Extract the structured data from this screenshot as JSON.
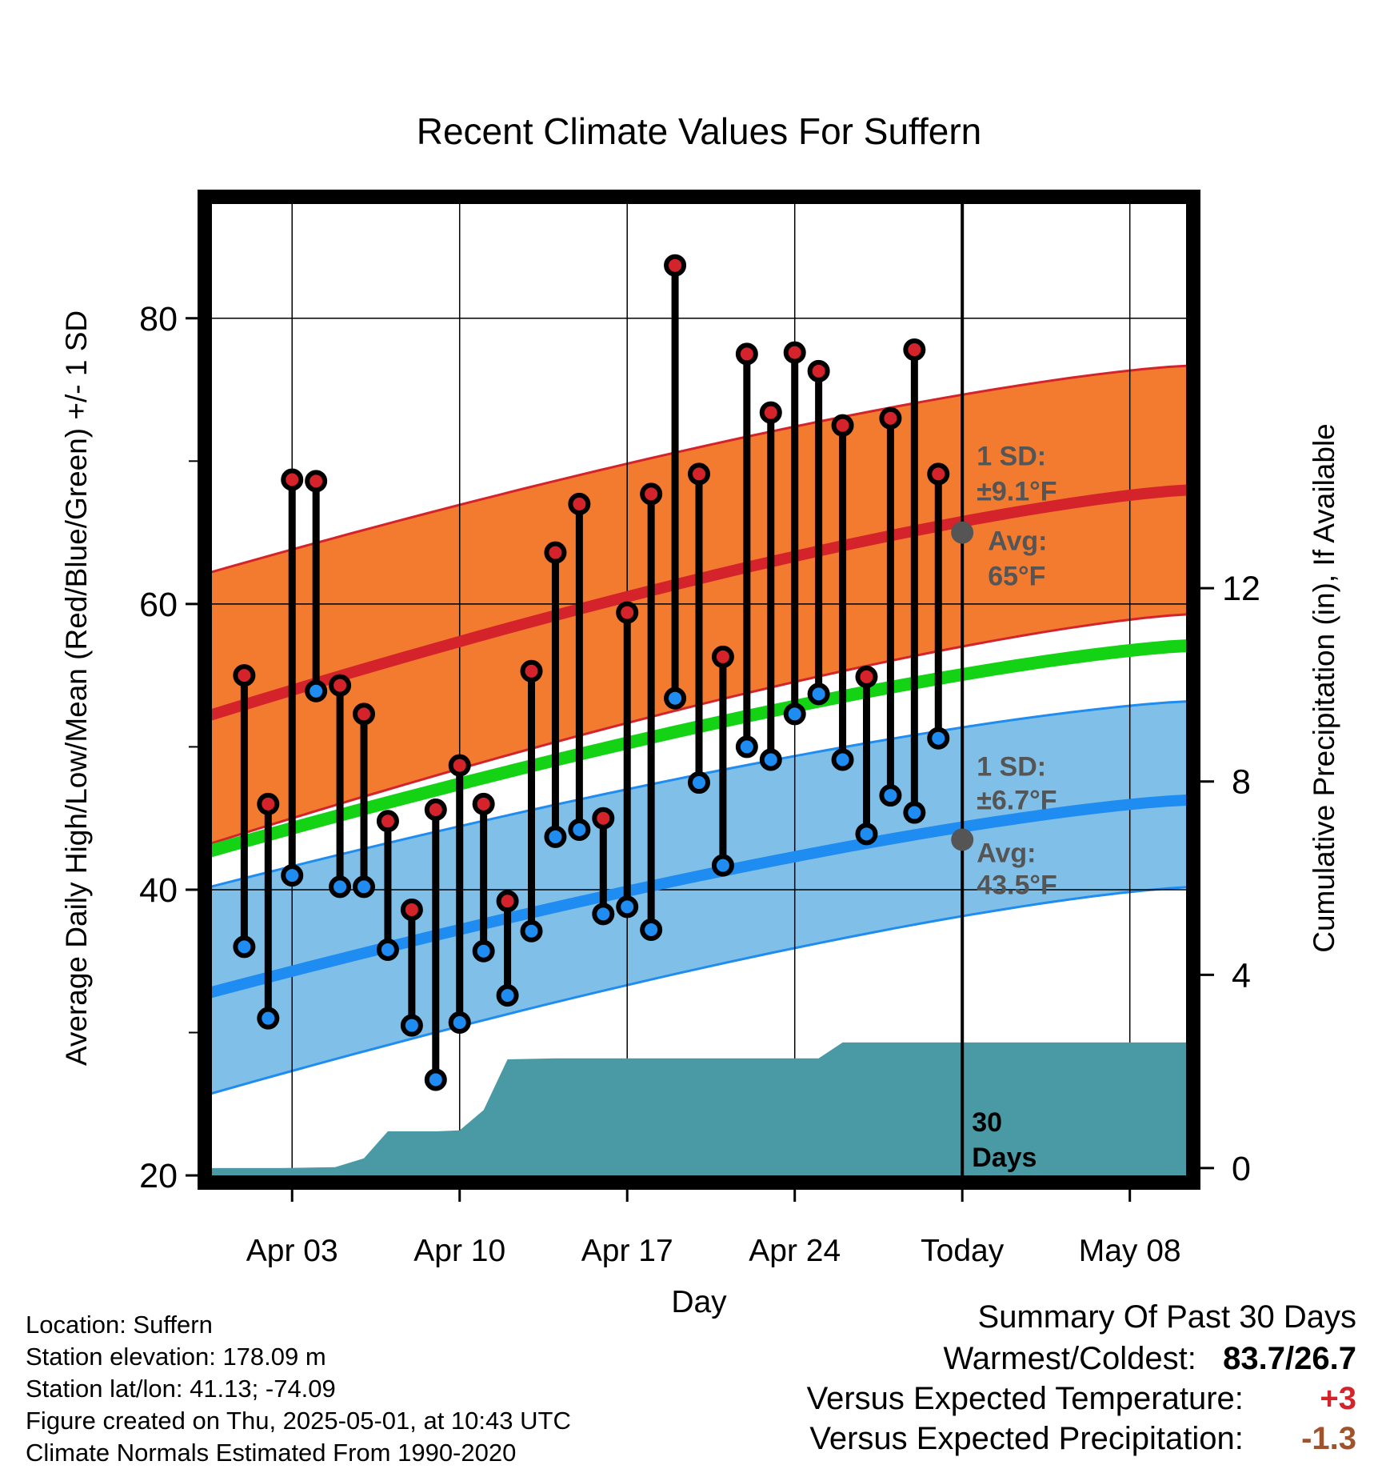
{
  "chart_data": {
    "type": "line",
    "title": "Recent Climate Values For Suffern",
    "xlabel": "Day",
    "ylabel": "Average Daily High/Low/Mean (Red/Blue/Green) +/- 1 SD",
    "y2label": "Cumulative Precipitation (in), If Available",
    "ylim": [
      19.5,
      88.5
    ],
    "y2lim": [
      -0.3,
      20.1
    ],
    "xlim": [
      -0.65,
      40.65
    ],
    "x_tick_labels": [
      {
        "day": 3,
        "label": "Apr 03"
      },
      {
        "day": 10,
        "label": "Apr 10"
      },
      {
        "day": 17,
        "label": "Apr 17"
      },
      {
        "day": 24,
        "label": "Apr 24"
      },
      {
        "day": 31,
        "label": "Today"
      },
      {
        "day": 38,
        "label": "May 08"
      }
    ],
    "y_ticks": [
      20,
      40,
      60,
      80
    ],
    "y_minor_ticks": [
      30,
      50,
      70
    ],
    "y2_ticks": [
      0,
      4,
      8,
      12
    ],
    "grid": true,
    "days": [
      1,
      2,
      3,
      4,
      5,
      6,
      7,
      8,
      9,
      10,
      11,
      12,
      13,
      14,
      15,
      16,
      17,
      18,
      19,
      20,
      21,
      22,
      23,
      24,
      25,
      26,
      27,
      28,
      29,
      30
    ],
    "highs": [
      55,
      46,
      68.7,
      68.6,
      54.3,
      52.3,
      44.8,
      38.6,
      45.6,
      48.7,
      46,
      39.2,
      55.3,
      63.6,
      67,
      45,
      59.4,
      67.7,
      83.7,
      69.1,
      56.3,
      77.5,
      73.4,
      77.6,
      76.3,
      72.5,
      54.9,
      73,
      77.8,
      69.1
    ],
    "lows": [
      36,
      31,
      41,
      53.9,
      40.2,
      40.2,
      35.8,
      30.5,
      26.7,
      30.7,
      35.7,
      32.6,
      37.1,
      43.7,
      44.2,
      38.3,
      38.8,
      37.2,
      53.4,
      47.5,
      41.7,
      50,
      49.1,
      52.3,
      53.7,
      49.1,
      43.9,
      46.6,
      45.4,
      50.6
    ],
    "normal_high": {
      "start": 52.1,
      "end": 68
    },
    "normal_high_band": {
      "lower_start": 43.1,
      "lower_end": 59.3,
      "upper_start": 62.1,
      "upper_end": 76.7
    },
    "normal_mean": {
      "start": 42.6,
      "end": 57.1
    },
    "normal_low": {
      "start": 32.7,
      "end": 46.3
    },
    "normal_low_band": {
      "lower_start": 25.6,
      "lower_end": 40.2,
      "upper_start": 40.1,
      "upper_end": 53.2
    },
    "precip_cumulative": [
      {
        "day": -0.6,
        "in": 0
      },
      {
        "day": 2.5,
        "in": 0
      },
      {
        "day": 4.8,
        "in": 0.02
      },
      {
        "day": 6.0,
        "in": 0.2
      },
      {
        "day": 7.0,
        "in": 0.76
      },
      {
        "day": 9.0,
        "in": 0.76
      },
      {
        "day": 10.0,
        "in": 0.78
      },
      {
        "day": 11.0,
        "in": 1.2
      },
      {
        "day": 12.0,
        "in": 2.25
      },
      {
        "day": 14.0,
        "in": 2.27
      },
      {
        "day": 25.0,
        "in": 2.27
      },
      {
        "day": 26.0,
        "in": 2.6
      },
      {
        "day": 40.6,
        "in": 2.6
      }
    ],
    "today_day": 31,
    "annotations": {
      "high_sd_title": "1 SD:",
      "high_sd_value": "±9.1°F",
      "high_avg_title": "Avg:",
      "high_avg_value": "65°F",
      "high_avg_temp": 65,
      "low_sd_title": "1 SD:",
      "low_sd_value": "±6.7°F",
      "low_avg_title": "Avg:",
      "low_avg_value": "43.5°F",
      "low_avg_temp": 43.5,
      "days_count": "30",
      "days_word": "Days"
    },
    "colors": {
      "high_band": "#f27b30",
      "high_line": "#d4232a",
      "low_band": "#80c0e8",
      "low_line": "#1e8cf0",
      "mean_line": "#14d214",
      "precip": "#4a9aa5",
      "high_dot": "#d4232a",
      "low_dot": "#1e8cf0",
      "annotation": "#555555",
      "above_normal": "#d4232a",
      "below_normal_precip": "#a0522d"
    }
  },
  "info": {
    "location": "Location: Suffern",
    "elevation": "Station elevation: 178.09 m",
    "latlon": "Station lat/lon: 41.13; -74.09",
    "created": "Figure created on Thu, 2025-05-01, at 10:43 UTC",
    "normals": "Climate Normals Estimated From 1990-2020"
  },
  "summary": {
    "title": "Summary Of Past 30 Days",
    "warmest_label": "Warmest/Coldest:",
    "warmest_value": "83.7/26.7",
    "temp_label": "Versus Expected Temperature:",
    "temp_value": "+3",
    "precip_label": "Versus Expected Precipitation:",
    "precip_value": "-1.3"
  }
}
